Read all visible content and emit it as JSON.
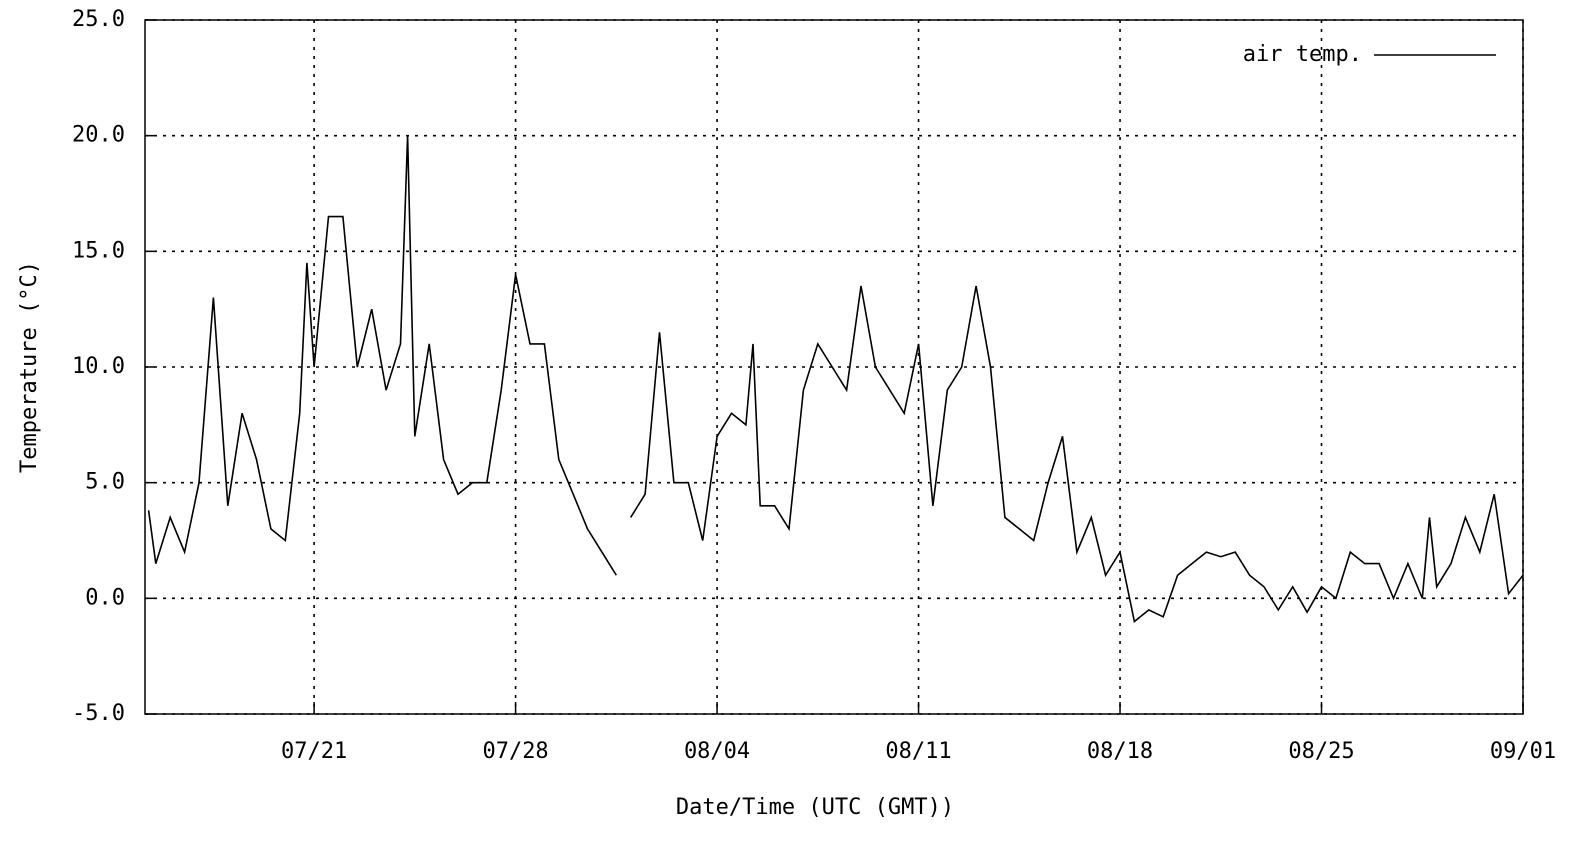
{
  "chart_data": {
    "type": "line",
    "ylabel": "Temperature (°C)",
    "xlabel": "Date/Time (UTC (GMT))",
    "legend": "top-right",
    "grid": true,
    "xlim": [
      "07/15 03:00",
      "09/01 00:00"
    ],
    "xticks": [
      {
        "value": "07/21 00:00",
        "label": "07/21"
      },
      {
        "value": "07/28 00:00",
        "label": "07/28"
      },
      {
        "value": "08/04 00:00",
        "label": "08/04"
      },
      {
        "value": "08/11 00:00",
        "label": "08/11"
      },
      {
        "value": "08/18 00:00",
        "label": "08/18"
      },
      {
        "value": "08/25 00:00",
        "label": "08/25"
      },
      {
        "value": "09/01 00:00",
        "label": "09/01"
      }
    ],
    "ylim": [
      -5,
      25
    ],
    "yticks": [
      {
        "value": -5,
        "label": "-5.0"
      },
      {
        "value": 0,
        "label": "0.0"
      },
      {
        "value": 5,
        "label": "5.0"
      },
      {
        "value": 10,
        "label": "10.0"
      },
      {
        "value": 15,
        "label": "15.0"
      },
      {
        "value": 20,
        "label": "20.0"
      },
      {
        "value": 25,
        "label": "25.0"
      }
    ],
    "x": [
      "07/15 06:00",
      "07/15 12:00",
      "07/16 00:00",
      "07/16 12:00",
      "07/17 00:00",
      "07/17 12:00",
      "07/18 00:00",
      "07/18 12:00",
      "07/19 00:00",
      "07/19 12:00",
      "07/20 00:00",
      "07/20 12:00",
      "07/20 18:00",
      "07/21 00:00",
      "07/21 12:00",
      "07/22 00:00",
      "07/22 12:00",
      "07/23 00:00",
      "07/23 12:00",
      "07/24 00:00",
      "07/24 06:00",
      "07/24 12:00",
      "07/25 00:00",
      "07/25 12:00",
      "07/26 00:00",
      "07/26 12:00",
      "07/27 00:00",
      "07/27 12:00",
      "07/28 00:00",
      "07/28 12:00",
      "07/29 00:00",
      "07/29 12:00",
      "07/30 00:00",
      "07/30 12:00",
      "07/31 00:00",
      "07/31 12:00",
      "07/31 18:00",
      "08/01 00:00",
      "08/01 12:00",
      "08/02 00:00",
      "08/02 12:00",
      "08/03 00:00",
      "08/03 12:00",
      "08/04 00:00",
      "08/04 12:00",
      "08/05 00:00",
      "08/05 06:00",
      "08/05 12:00",
      "08/06 00:00",
      "08/06 12:00",
      "08/07 00:00",
      "08/07 12:00",
      "08/08 00:00",
      "08/08 12:00",
      "08/09 00:00",
      "08/09 12:00",
      "08/10 00:00",
      "08/10 12:00",
      "08/11 00:00",
      "08/11 12:00",
      "08/12 00:00",
      "08/12 12:00",
      "08/13 00:00",
      "08/13 12:00",
      "08/14 00:00",
      "08/14 12:00",
      "08/15 00:00",
      "08/15 12:00",
      "08/16 00:00",
      "08/16 12:00",
      "08/17 00:00",
      "08/17 12:00",
      "08/18 00:00",
      "08/18 12:00",
      "08/19 00:00",
      "08/19 12:00",
      "08/20 00:00",
      "08/20 12:00",
      "08/21 00:00",
      "08/21 12:00",
      "08/22 00:00",
      "08/22 12:00",
      "08/23 00:00",
      "08/23 12:00",
      "08/24 00:00",
      "08/24 12:00",
      "08/25 00:00",
      "08/25 12:00",
      "08/26 00:00",
      "08/26 12:00",
      "08/27 00:00",
      "08/27 12:00",
      "08/28 00:00",
      "08/28 12:00",
      "08/28 18:00",
      "08/29 00:00",
      "08/29 12:00",
      "08/30 00:00",
      "08/30 12:00",
      "08/31 00:00",
      "08/31 12:00",
      "09/01 00:00"
    ],
    "series": [
      {
        "name": "air temp.",
        "color": "#000000",
        "values": [
          3.8,
          1.5,
          3.5,
          2,
          5,
          13,
          4,
          8,
          6,
          3,
          2.5,
          8,
          14.5,
          10,
          16.5,
          16.5,
          10,
          12.5,
          9,
          11,
          20,
          7,
          11,
          6,
          4.5,
          5,
          5,
          9,
          14,
          11,
          11,
          6,
          4.5,
          3,
          2,
          1,
          null,
          3.5,
          4.5,
          11.5,
          5,
          5,
          2.5,
          7,
          8,
          7.5,
          11,
          4,
          4,
          3,
          9,
          11,
          10,
          9,
          13.5,
          10,
          9,
          8,
          11,
          4,
          9,
          10,
          13.5,
          10,
          3.5,
          3,
          2.5,
          5,
          7,
          2,
          3.5,
          1,
          2,
          -1,
          -0.5,
          -0.8,
          1,
          1.5,
          2,
          1.8,
          2,
          1,
          0.5,
          -0.5,
          0.5,
          -0.6,
          0.5,
          0,
          2,
          1.5,
          1.5,
          0,
          1.5,
          0,
          3.5,
          0.5,
          1.5,
          3.5,
          2,
          4.5,
          0.2,
          1
        ]
      }
    ]
  }
}
